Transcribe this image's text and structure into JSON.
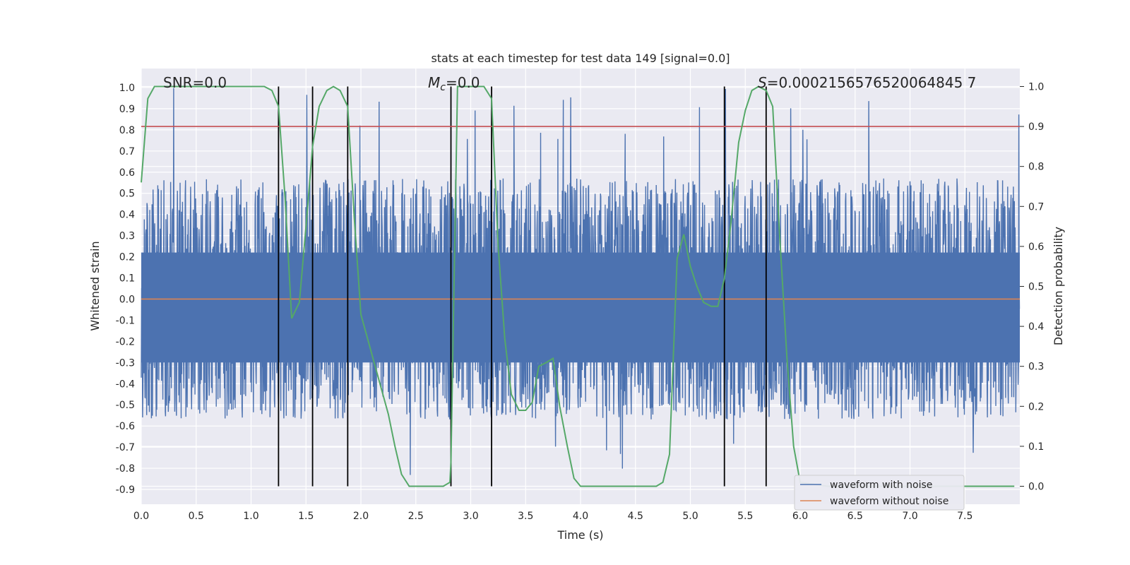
{
  "chart_data": {
    "type": "line",
    "title": "stats at each timestep for test data 149 [signal=0.0]",
    "xlabel": "Time (s)",
    "ylabel": "Whitened strain",
    "y2label": "Detection probability",
    "xlim": [
      0.0,
      8.0
    ],
    "ylim": [
      -0.97,
      1.09
    ],
    "y2lim": [
      -0.045,
      1.045
    ],
    "x_ticks": [
      "0.0",
      "0.5",
      "1.0",
      "1.5",
      "2.0",
      "2.5",
      "3.0",
      "3.5",
      "4.0",
      "4.5",
      "5.0",
      "5.5",
      "6.0",
      "6.5",
      "7.0",
      "7.5"
    ],
    "y_ticks": [
      "1.0",
      "0.9",
      "0.8",
      "0.7",
      "0.6",
      "0.5",
      "0.4",
      "0.3",
      "0.2",
      "0.1",
      "0.0",
      "-0.1",
      "-0.2",
      "-0.3",
      "-0.4",
      "-0.5",
      "-0.6",
      "-0.7",
      "-0.8",
      "-0.9"
    ],
    "y2_ticks": [
      "1.0",
      "0.9",
      "0.8",
      "0.7",
      "0.6",
      "0.5",
      "0.4",
      "0.3",
      "0.2",
      "0.1",
      "0.0"
    ],
    "annotations": {
      "snr": "SNR=0.0",
      "mc_symbol": "M",
      "mc_sub": "c",
      "mc_value": "=0.0",
      "s_symbol": "S",
      "s_value": "=0.0002156576520064845 7"
    },
    "threshold": {
      "y2": 0.9,
      "color": "#c44e52"
    },
    "detection_boundaries": [
      1.25,
      1.56,
      1.88,
      2.82,
      3.19,
      5.31,
      5.69
    ],
    "noise_amplitude": {
      "typical_max": 0.6,
      "typical_min": -0.6,
      "peak_max": 1.0,
      "peak_min": -0.88
    },
    "series": [
      {
        "name": "waveform with noise",
        "color": "#4c72b0"
      },
      {
        "name": "waveform without noise",
        "color": "#dd8452",
        "values": [
          0.0
        ]
      },
      {
        "color": "#55a868",
        "axis": "y2",
        "x": [
          0.0,
          0.06,
          0.12,
          0.25,
          0.5,
          0.75,
          1.0,
          1.12,
          1.19,
          1.25,
          1.31,
          1.37,
          1.44,
          1.5,
          1.56,
          1.62,
          1.69,
          1.75,
          1.81,
          1.88,
          1.94,
          2.0,
          2.12,
          2.25,
          2.31,
          2.37,
          2.44,
          2.5,
          2.62,
          2.69,
          2.75,
          2.81,
          2.82,
          2.88,
          2.94,
          3.0,
          3.06,
          3.12,
          3.19,
          3.25,
          3.31,
          3.37,
          3.44,
          3.5,
          3.56,
          3.62,
          3.69,
          3.75,
          3.81,
          3.88,
          3.94,
          4.0,
          4.25,
          4.5,
          4.62,
          4.69,
          4.75,
          4.81,
          4.88,
          4.94,
          5.0,
          5.06,
          5.12,
          5.19,
          5.25,
          5.31,
          5.37,
          5.44,
          5.5,
          5.56,
          5.62,
          5.69,
          5.75,
          5.81,
          5.88,
          5.94,
          6.0,
          6.25,
          6.5,
          6.75,
          7.0,
          7.25,
          7.5,
          7.95
        ],
        "values": [
          0.76,
          0.97,
          1.0,
          1.0,
          1.0,
          1.0,
          1.0,
          1.0,
          0.99,
          0.95,
          0.72,
          0.42,
          0.46,
          0.65,
          0.85,
          0.95,
          0.99,
          1.0,
          0.99,
          0.95,
          0.67,
          0.43,
          0.31,
          0.18,
          0.1,
          0.03,
          0.0,
          0.0,
          0.0,
          0.0,
          0.0,
          0.01,
          0.06,
          1.0,
          1.0,
          1.0,
          1.0,
          1.0,
          0.97,
          0.6,
          0.37,
          0.23,
          0.19,
          0.19,
          0.21,
          0.3,
          0.31,
          0.32,
          0.2,
          0.1,
          0.02,
          0.0,
          0.0,
          0.0,
          0.0,
          0.0,
          0.01,
          0.08,
          0.57,
          0.63,
          0.55,
          0.5,
          0.46,
          0.45,
          0.45,
          0.52,
          0.66,
          0.86,
          0.94,
          0.99,
          1.0,
          0.99,
          0.95,
          0.64,
          0.32,
          0.1,
          0.01,
          0.0,
          0.0,
          0.0,
          0.0,
          0.0,
          0.0,
          0.0
        ]
      }
    ],
    "legend": {
      "position": "lower-right"
    },
    "grid": true
  }
}
